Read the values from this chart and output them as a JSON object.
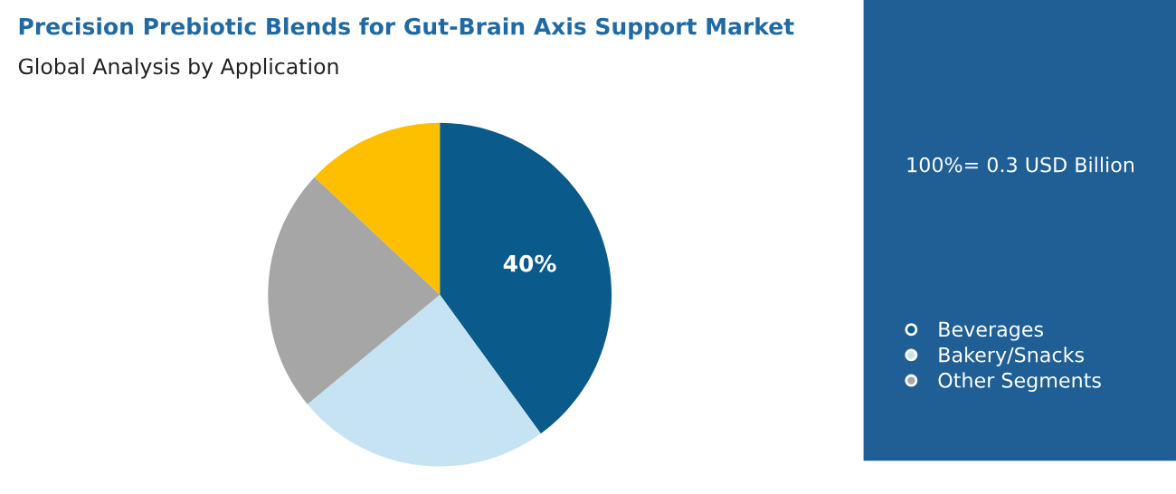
{
  "chart_data": {
    "type": "pie",
    "title": "Precision Prebiotic Blends for Gut-Brain Axis Support Market",
    "subtitle": "Global Analysis by Application",
    "categories": [
      "Beverages",
      "Bakery/Snacks",
      "Other Segments",
      null
    ],
    "values": [
      40,
      24,
      23,
      13
    ],
    "value_labels": [
      "40%",
      null,
      null,
      null
    ],
    "colors": [
      "#0b5a8c",
      "#c5e3f3",
      "#a6a6a6",
      "#fdbf00"
    ],
    "annotations": [
      "100%= 0.3 USD Billion"
    ],
    "legend": "right"
  }
}
